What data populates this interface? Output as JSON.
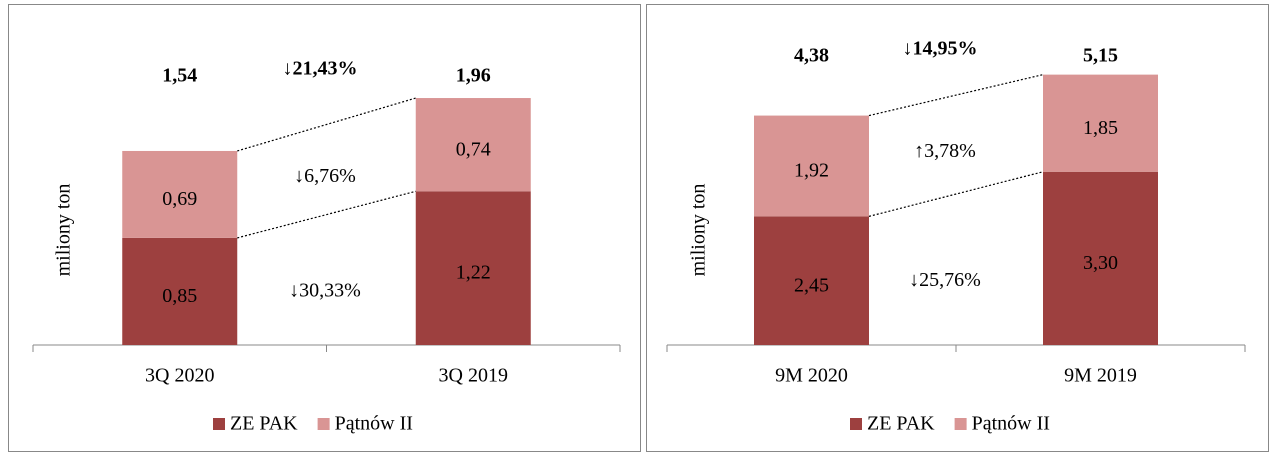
{
  "chart_data": [
    {
      "type": "bar",
      "stacked": true,
      "y_label": "miliony ton",
      "categories": [
        "3Q 2020",
        "3Q 2019"
      ],
      "series": [
        {
          "name": "ZE PAK",
          "color": "#9d403f",
          "values": [
            0.85,
            1.22
          ],
          "value_labels": [
            "0,85",
            "1,22"
          ]
        },
        {
          "name": "Pątnów II",
          "color": "#d99594",
          "values": [
            0.69,
            0.74
          ],
          "value_labels": [
            "0,69",
            "0,74"
          ]
        }
      ],
      "totals": [
        1.54,
        1.96
      ],
      "total_labels": [
        "1,54",
        "1,96"
      ],
      "change_total": "↓21,43%",
      "change_top": "↓6,76%",
      "change_bottom": "↓30,33%",
      "ylim": [
        0,
        2.5
      ]
    },
    {
      "type": "bar",
      "stacked": true,
      "y_label": "miliony ton",
      "categories": [
        "9M 2020",
        "9M 2019"
      ],
      "series": [
        {
          "name": "ZE PAK",
          "color": "#9d403f",
          "values": [
            2.45,
            3.3
          ],
          "value_labels": [
            "2,45",
            "3,30"
          ]
        },
        {
          "name": "Pątnów II",
          "color": "#d99594",
          "values": [
            1.92,
            1.85
          ],
          "value_labels": [
            "1,92",
            "1,85"
          ]
        }
      ],
      "totals": [
        4.38,
        5.15
      ],
      "total_labels": [
        "4,38",
        "5,15"
      ],
      "change_total": "↓14,95%",
      "change_top": "↑3,78%",
      "change_bottom": "↓25,76%",
      "ylim": [
        0,
        6
      ]
    }
  ]
}
